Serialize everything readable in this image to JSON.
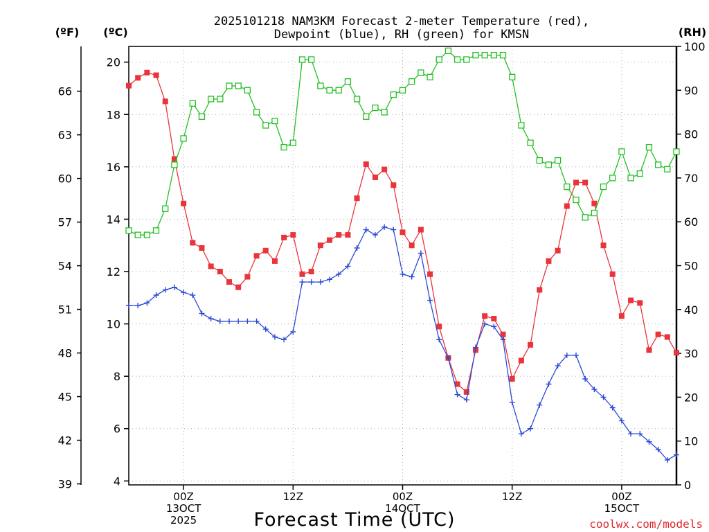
{
  "chart_data": {
    "type": "line",
    "title_line1": "2025101218 NAM3KM Forecast 2-meter Temperature (red),",
    "title_line2": "Dewpoint (blue), RH (green) for KMSN",
    "xlabel": "Forecast Time (UTC)",
    "credit": "coolwx.com/models",
    "units": {
      "fahrenheit": "(ºF)",
      "celsius": "(ºC)",
      "rh": "(RH)"
    },
    "x_range_hours": [
      18,
      78
    ],
    "celsius_range": [
      3.85,
      20.6
    ],
    "rh_range": [
      0,
      100
    ],
    "left_f_ticks": [
      "39",
      "42",
      "45",
      "48",
      "51",
      "54",
      "57",
      "60",
      "63",
      "66"
    ],
    "celsius_ticks": [
      "4",
      "6",
      "8",
      "10",
      "12",
      "14",
      "16",
      "18",
      "20"
    ],
    "rh_ticks": [
      "0",
      "10",
      "20",
      "30",
      "40",
      "50",
      "60",
      "70",
      "80",
      "90",
      "100"
    ],
    "x_ticks": [
      {
        "hour": 24,
        "line1": "00Z",
        "line2": "13OCT",
        "line3": "2025"
      },
      {
        "hour": 36,
        "line1": "12Z",
        "line2": "",
        "line3": ""
      },
      {
        "hour": 48,
        "line1": "00Z",
        "line2": "14OCT",
        "line3": ""
      },
      {
        "hour": 60,
        "line1": "12Z",
        "line2": "",
        "line3": ""
      },
      {
        "hour": 72,
        "line1": "00Z",
        "line2": "15OCT",
        "line3": ""
      }
    ],
    "x": [
      18,
      19,
      20,
      21,
      22,
      23,
      24,
      25,
      26,
      27,
      28,
      29,
      30,
      31,
      32,
      33,
      34,
      35,
      36,
      37,
      38,
      39,
      40,
      41,
      42,
      43,
      44,
      45,
      46,
      47,
      48,
      49,
      50,
      51,
      52,
      53,
      54,
      55,
      56,
      57,
      58,
      59,
      60,
      61,
      62,
      63,
      64,
      65,
      66,
      67,
      68,
      69,
      70,
      71,
      72,
      73,
      74,
      75,
      76,
      77,
      78
    ],
    "series": [
      {
        "name": "Temperature",
        "axis": "celsius",
        "color": "#e8343a",
        "marker": "filled-square",
        "values": [
          19.1,
          19.4,
          19.6,
          19.5,
          18.5,
          16.3,
          14.6,
          13.1,
          12.9,
          12.2,
          12.0,
          11.6,
          11.4,
          11.8,
          12.6,
          12.8,
          12.4,
          13.3,
          13.4,
          11.9,
          12.0,
          13.0,
          13.2,
          13.4,
          13.4,
          14.8,
          16.1,
          15.6,
          15.9,
          15.3,
          13.5,
          13.0,
          13.6,
          11.9,
          9.9,
          8.7,
          7.7,
          7.4,
          9.0,
          10.3,
          10.2,
          9.6,
          7.9,
          8.6,
          9.2,
          11.3,
          12.4,
          12.8,
          14.5,
          15.4,
          15.4,
          14.6,
          13.0,
          11.9,
          10.3,
          10.9,
          10.8,
          9.0,
          9.6,
          9.5,
          8.9
        ]
      },
      {
        "name": "Dewpoint",
        "axis": "celsius",
        "color": "#2a49d6",
        "marker": "plus",
        "values": [
          10.7,
          10.7,
          10.8,
          11.1,
          11.3,
          11.4,
          11.2,
          11.1,
          10.4,
          10.2,
          10.1,
          10.1,
          10.1,
          10.1,
          10.1,
          9.8,
          9.5,
          9.4,
          9.7,
          11.6,
          11.6,
          11.6,
          11.7,
          11.9,
          12.2,
          12.9,
          13.6,
          13.4,
          13.7,
          13.6,
          11.9,
          11.8,
          12.7,
          10.9,
          9.4,
          8.7,
          7.3,
          7.1,
          9.1,
          10.0,
          9.9,
          9.4,
          7.0,
          5.8,
          6.0,
          6.9,
          7.7,
          8.4,
          8.8,
          8.8,
          7.9,
          7.5,
          7.2,
          6.8,
          6.3,
          5.8,
          5.8,
          5.5,
          5.2,
          4.8,
          5.0
        ]
      },
      {
        "name": "RH",
        "axis": "rh",
        "color": "#22c022",
        "marker": "open-square",
        "values": [
          58,
          57,
          57,
          58,
          63,
          73,
          79,
          87,
          84,
          88,
          88,
          91,
          91,
          90,
          85,
          82,
          83,
          77,
          78,
          97,
          97,
          91,
          90,
          90,
          92,
          88,
          84,
          86,
          85,
          89,
          90,
          92,
          94,
          93,
          97,
          99,
          97,
          97,
          98,
          98,
          98,
          98,
          93,
          82,
          78,
          74,
          73,
          74,
          68,
          65,
          61,
          62,
          68,
          70,
          76,
          70,
          71,
          77,
          73,
          72,
          76
        ]
      }
    ]
  }
}
